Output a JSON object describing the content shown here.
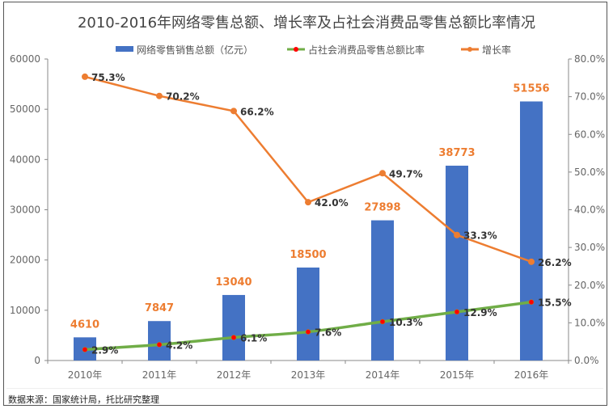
{
  "chart_data": {
    "type": "bar+line",
    "title": "2010-2016年网络零售总额、增长率及占社会消费品零售总额比率情况",
    "categories": [
      "2010年",
      "2011年",
      "2012年",
      "2013年",
      "2014年",
      "2015年",
      "2016年"
    ],
    "series": [
      {
        "name": "网络零售销售总额（亿元）",
        "type": "bar",
        "axis": "left",
        "values": [
          4610,
          7847,
          13040,
          18500,
          27898,
          38773,
          51556
        ],
        "labels": [
          "4610",
          "7847",
          "13040",
          "18500",
          "27898",
          "38773",
          "51556"
        ],
        "color": "#4472C4",
        "label_color": "#ED7D31"
      },
      {
        "name": "占社会消费品零售总额比率",
        "type": "line",
        "axis": "right",
        "values": [
          2.9,
          4.2,
          6.1,
          7.6,
          10.3,
          12.9,
          15.5
        ],
        "labels": [
          "2.9%",
          "4.2%",
          "6.1%",
          "7.6%",
          "10.3%",
          "12.9%",
          "15.5%"
        ],
        "color": "#70AD47",
        "marker_color": "#FF0000"
      },
      {
        "name": "增长率",
        "type": "line",
        "axis": "right",
        "values": [
          75.3,
          70.2,
          66.2,
          42.0,
          49.7,
          33.3,
          26.2
        ],
        "labels": [
          "75.3%",
          "70.2%",
          "66.2%",
          "42.0%",
          "49.7%",
          "33.3%",
          "26.2%"
        ],
        "color": "#ED7D31"
      }
    ],
    "y_left": {
      "range": [
        0,
        60000
      ],
      "ticks": [
        "0",
        "10000",
        "20000",
        "30000",
        "40000",
        "50000",
        "60000"
      ]
    },
    "y_right": {
      "range": [
        0,
        80
      ],
      "ticks": [
        "0.0%",
        "10.0%",
        "20.0%",
        "30.0%",
        "40.0%",
        "50.0%",
        "60.0%",
        "70.0%",
        "80.0%"
      ]
    },
    "legend": "top",
    "grid": false
  },
  "source": "数据来源：国家统计局，托比研究整理"
}
